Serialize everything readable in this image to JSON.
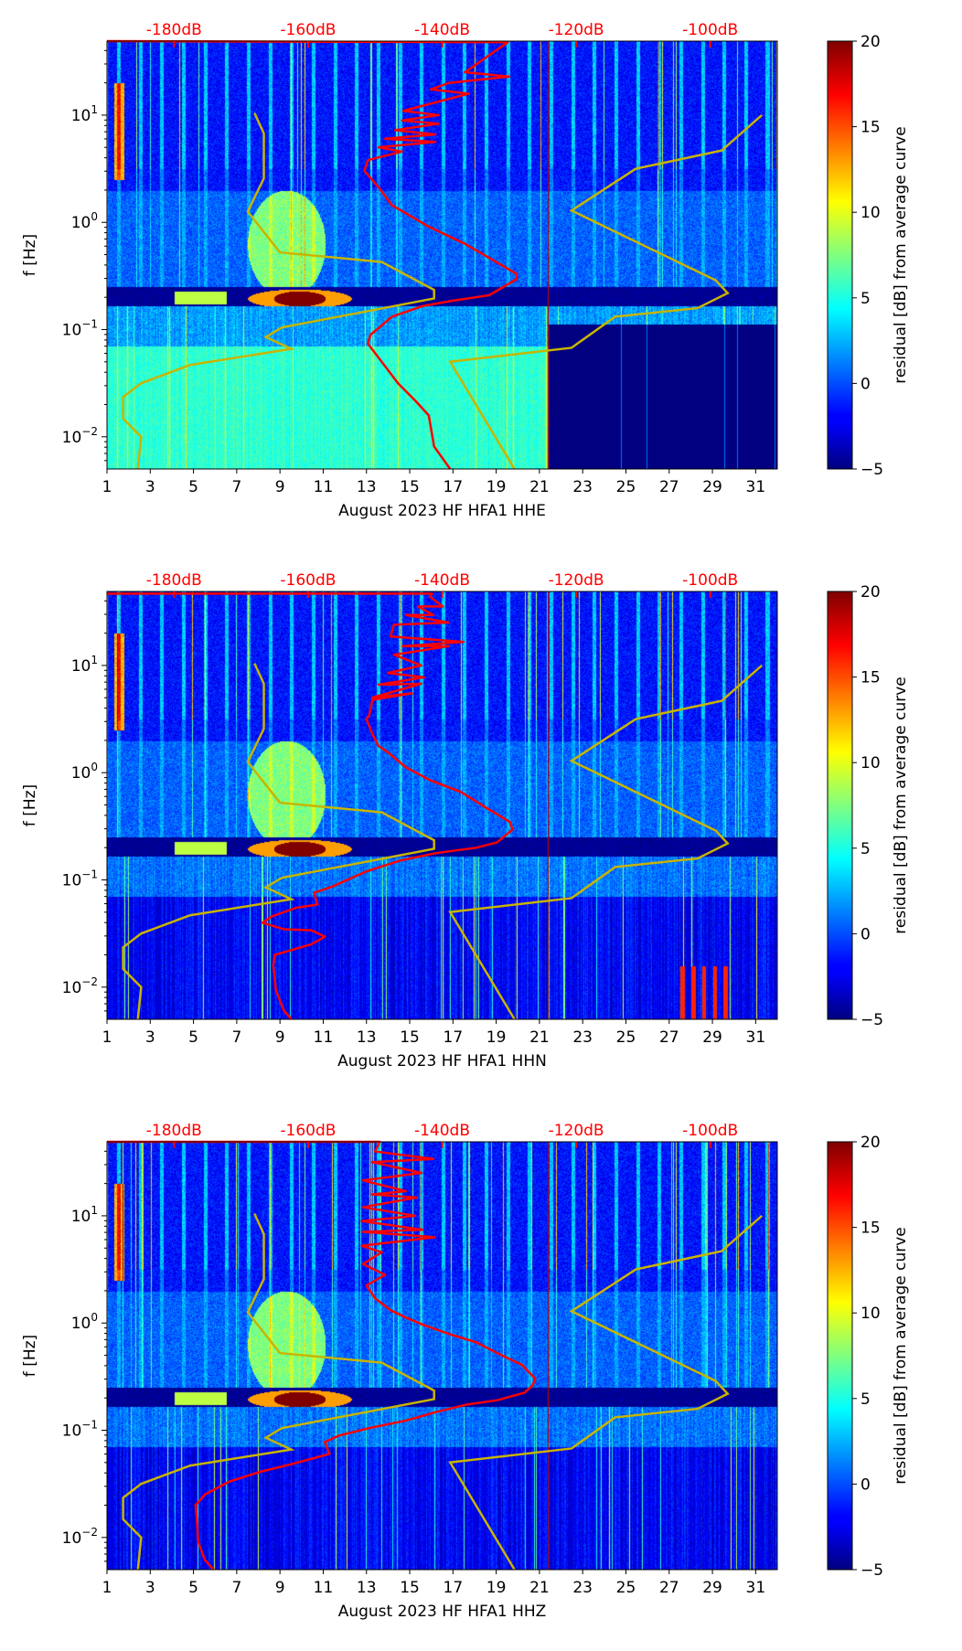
{
  "figure": {
    "colorbar_label": "residual [dB] from average curve",
    "colorbar_ticks": [
      -5,
      0,
      5,
      10,
      15,
      20
    ],
    "colorbar_range": [
      -5,
      20
    ],
    "ylabel": "f [Hz]"
  },
  "chart_data": [
    {
      "type": "heatmap",
      "title": "",
      "xlabel": "August 2023 HF HFA1  HHE",
      "ylabel": "f [Hz]",
      "x_ticks": [
        1,
        3,
        5,
        7,
        9,
        11,
        13,
        15,
        17,
        19,
        21,
        23,
        25,
        27,
        29,
        31
      ],
      "xlim": [
        1,
        32
      ],
      "y_scale": "log",
      "ylim_hz": [
        0.005,
        49
      ],
      "y_ticks": [
        "10^1",
        "10^0",
        "10^-1",
        "10^-2"
      ],
      "top_axis": {
        "ticks": [
          "-180dB",
          "-160dB",
          "-140dB",
          "-120dB",
          "-100dB"
        ],
        "values": [
          -180,
          -160,
          -140,
          -120,
          -100
        ],
        "range": [
          -190,
          -90
        ]
      },
      "gap_after_day": 21.4,
      "series": [
        {
          "name": "station PSD (dB, log10 f)",
          "color": "#ff0000",
          "points": [
            [
              -190,
              1.69
            ],
            [
              -130.2,
              1.68
            ],
            [
              -136.6,
              1.4
            ],
            [
              -130,
              1.36
            ],
            [
              -139,
              1.3
            ],
            [
              -141.7,
              1.24
            ],
            [
              -136,
              1.2
            ],
            [
              -145.8,
              1.04
            ],
            [
              -140.5,
              1.0
            ],
            [
              -146,
              0.95
            ],
            [
              -140.5,
              0.92
            ],
            [
              -147,
              0.86
            ],
            [
              -141,
              0.82
            ],
            [
              -148.5,
              0.78
            ],
            [
              -141,
              0.75
            ],
            [
              -149.5,
              0.7
            ],
            [
              -146,
              0.66
            ],
            [
              -151.1,
              0.58
            ],
            [
              -151.6,
              0.48
            ],
            [
              -149.4,
              0.32
            ],
            [
              -147.5,
              0.16
            ],
            [
              -142.0,
              -0.04
            ],
            [
              -136.6,
              -0.2
            ],
            [
              -128.9,
              -0.48
            ],
            [
              -128.9,
              -0.53
            ],
            [
              -133.0,
              -0.68
            ],
            [
              -138.4,
              -0.73
            ],
            [
              -142.9,
              -0.78
            ],
            [
              -147.5,
              -0.88
            ],
            [
              -150.7,
              -1.05
            ],
            [
              -151.1,
              -1.13
            ],
            [
              -148.9,
              -1.31
            ],
            [
              -146.6,
              -1.5
            ],
            [
              -143.9,
              -1.67
            ],
            [
              -142.0,
              -1.8
            ],
            [
              -141.2,
              -2.09
            ],
            [
              -138.8,
              -2.3
            ]
          ]
        }
      ]
    },
    {
      "type": "heatmap",
      "title": "",
      "xlabel": "August 2023 HF HFA1  HHN",
      "ylabel": "f [Hz]",
      "x_ticks": [
        1,
        3,
        5,
        7,
        9,
        11,
        13,
        15,
        17,
        19,
        21,
        23,
        25,
        27,
        29,
        31
      ],
      "xlim": [
        1,
        32
      ],
      "y_scale": "log",
      "ylim_hz": [
        0.005,
        49
      ],
      "y_ticks": [
        "10^1",
        "10^0",
        "10^-1",
        "10^-2"
      ],
      "top_axis": {
        "ticks": [
          "-180dB",
          "-160dB",
          "-140dB",
          "-120dB",
          "-100dB"
        ],
        "values": [
          -180,
          -160,
          -140,
          -120,
          -100
        ],
        "range": [
          -190,
          -90
        ]
      },
      "gap_after_day": null,
      "series": [
        {
          "name": "station PSD (dB, log10 f)",
          "color": "#ff0000",
          "points": [
            [
              -190,
              1.67
            ],
            [
              -141.5,
              1.67
            ],
            [
              -141.8,
              1.64
            ],
            [
              -139.9,
              1.55
            ],
            [
              -143.6,
              1.55
            ],
            [
              -141.3,
              1.47
            ],
            [
              -145.4,
              1.47
            ],
            [
              -139.0,
              1.4
            ],
            [
              -147.2,
              1.38
            ],
            [
              -147.7,
              1.27
            ],
            [
              -136.8,
              1.22
            ],
            [
              -145.9,
              1.18
            ],
            [
              -139.0,
              1.18
            ],
            [
              -147.2,
              1.1
            ],
            [
              -143.1,
              1.0
            ],
            [
              -148.1,
              0.93
            ],
            [
              -142.7,
              0.89
            ],
            [
              -149.5,
              0.82
            ],
            [
              -143.1,
              0.83
            ],
            [
              -150.4,
              0.7
            ],
            [
              -144.5,
              0.74
            ],
            [
              -150.4,
              0.68
            ],
            [
              -150.9,
              0.53
            ],
            [
              -151.3,
              0.5
            ],
            [
              -150.4,
              0.36
            ],
            [
              -149.5,
              0.25
            ],
            [
              -148.1,
              0.19
            ],
            [
              -145.4,
              0.05
            ],
            [
              -141.8,
              -0.07
            ],
            [
              -137.2,
              -0.18
            ],
            [
              -133.6,
              -0.32
            ],
            [
              -129.9,
              -0.46
            ],
            [
              -129.5,
              -0.53
            ],
            [
              -131.8,
              -0.65
            ],
            [
              -134.9,
              -0.7
            ],
            [
              -140.9,
              -0.75
            ],
            [
              -146.3,
              -0.82
            ],
            [
              -151.3,
              -0.92
            ],
            [
              -156.3,
              -1.06
            ],
            [
              -159.1,
              -1.12
            ],
            [
              -158.6,
              -1.23
            ],
            [
              -161.8,
              -1.26
            ],
            [
              -165.4,
              -1.34
            ],
            [
              -166.8,
              -1.4
            ],
            [
              -163.6,
              -1.46
            ],
            [
              -159.5,
              -1.47
            ],
            [
              -157.5,
              -1.53
            ],
            [
              -159.5,
              -1.6
            ],
            [
              -165.0,
              -1.7
            ],
            [
              -165.2,
              -1.8
            ],
            [
              -165.0,
              -1.91
            ],
            [
              -164.8,
              -2.03
            ],
            [
              -163.6,
              -2.22
            ],
            [
              -162.5,
              -2.3
            ]
          ]
        }
      ]
    },
    {
      "type": "heatmap",
      "title": "",
      "xlabel": "August 2023 HF HFA1  HHZ",
      "ylabel": "f [Hz]",
      "x_ticks": [
        1,
        3,
        5,
        7,
        9,
        11,
        13,
        15,
        17,
        19,
        21,
        23,
        25,
        27,
        29,
        31
      ],
      "xlim": [
        1,
        32
      ],
      "y_scale": "log",
      "ylim_hz": [
        0.005,
        49
      ],
      "y_ticks": [
        "10^1",
        "10^0",
        "10^-1",
        "10^-2"
      ],
      "top_axis": {
        "ticks": [
          "-180dB",
          "-160dB",
          "-140dB",
          "-120dB",
          "-100dB"
        ],
        "values": [
          -180,
          -160,
          -140,
          -120,
          -100
        ],
        "range": [
          -190,
          -90
        ]
      },
      "gap_after_day": null,
      "series": [
        {
          "name": "station PSD (dB, log10 f)",
          "color": "#ff0000",
          "points": [
            [
              -190,
              1.69
            ],
            [
              -149.3,
              1.69
            ],
            [
              -150.0,
              1.6
            ],
            [
              -141.3,
              1.53
            ],
            [
              -150.4,
              1.5
            ],
            [
              -143.1,
              1.4
            ],
            [
              -151.8,
              1.33
            ],
            [
              -145.4,
              1.23
            ],
            [
              -150.4,
              1.2
            ],
            [
              -143.8,
              1.17
            ],
            [
              -151.8,
              1.08
            ],
            [
              -144.0,
              1.0
            ],
            [
              -152.0,
              0.95
            ],
            [
              -142.9,
              0.87
            ],
            [
              -151.8,
              0.85
            ],
            [
              -141.1,
              0.8
            ],
            [
              -152.0,
              0.72
            ],
            [
              -149.0,
              0.66
            ],
            [
              -151.8,
              0.55
            ],
            [
              -148.5,
              0.45
            ],
            [
              -151.3,
              0.35
            ],
            [
              -150.0,
              0.23
            ],
            [
              -147.7,
              0.12
            ],
            [
              -145.4,
              0.05
            ],
            [
              -142.7,
              -0.02
            ],
            [
              -138.6,
              -0.11
            ],
            [
              -134.9,
              -0.18
            ],
            [
              -131.8,
              -0.28
            ],
            [
              -128.1,
              -0.39
            ],
            [
              -126.1,
              -0.52
            ],
            [
              -126.5,
              -0.58
            ],
            [
              -127.7,
              -0.65
            ],
            [
              -131.8,
              -0.72
            ],
            [
              -136.3,
              -0.76
            ],
            [
              -140.9,
              -0.83
            ],
            [
              -145.4,
              -0.91
            ],
            [
              -150.9,
              -0.98
            ],
            [
              -155.4,
              -1.05
            ],
            [
              -157.5,
              -1.11
            ],
            [
              -156.8,
              -1.22
            ],
            [
              -159.1,
              -1.26
            ],
            [
              -162.7,
              -1.32
            ],
            [
              -167.3,
              -1.39
            ],
            [
              -171.8,
              -1.48
            ],
            [
              -175.4,
              -1.6
            ],
            [
              -176.8,
              -1.7
            ],
            [
              -176.6,
              -1.82
            ],
            [
              -176.4,
              -2.04
            ],
            [
              -175.4,
              -2.21
            ],
            [
              -174.1,
              -2.3
            ]
          ]
        }
      ]
    }
  ],
  "noise_models": {
    "color": "#c8b400",
    "low": [
      [
        -168,
        1.02
      ],
      [
        -166.6,
        0.83
      ],
      [
        -166.6,
        0.41
      ],
      [
        -169,
        0.1
      ],
      [
        -164.2,
        -0.28
      ],
      [
        -149,
        -0.37
      ],
      [
        -141.2,
        -0.63
      ],
      [
        -141.2,
        -0.71
      ],
      [
        -163.9,
        -0.98
      ],
      [
        -166.3,
        -1.07
      ],
      [
        -162.5,
        -1.18
      ],
      [
        -177.6,
        -1.33
      ],
      [
        -184.9,
        -1.5
      ],
      [
        -187.6,
        -1.63
      ],
      [
        -187.6,
        -1.83
      ],
      [
        -184.9,
        -2.0
      ],
      [
        -185.4,
        -2.3
      ]
    ],
    "high": [
      [
        -92.3,
        1.0
      ],
      [
        -98.3,
        0.67
      ],
      [
        -111.1,
        0.5
      ],
      [
        -120.7,
        0.11
      ],
      [
        -99.2,
        -0.54
      ],
      [
        -97.4,
        -0.66
      ],
      [
        -101.9,
        -0.8
      ],
      [
        -114.2,
        -0.88
      ],
      [
        -120.7,
        -1.17
      ],
      [
        -138.8,
        -1.3
      ],
      [
        -129.2,
        -2.3
      ]
    ]
  }
}
